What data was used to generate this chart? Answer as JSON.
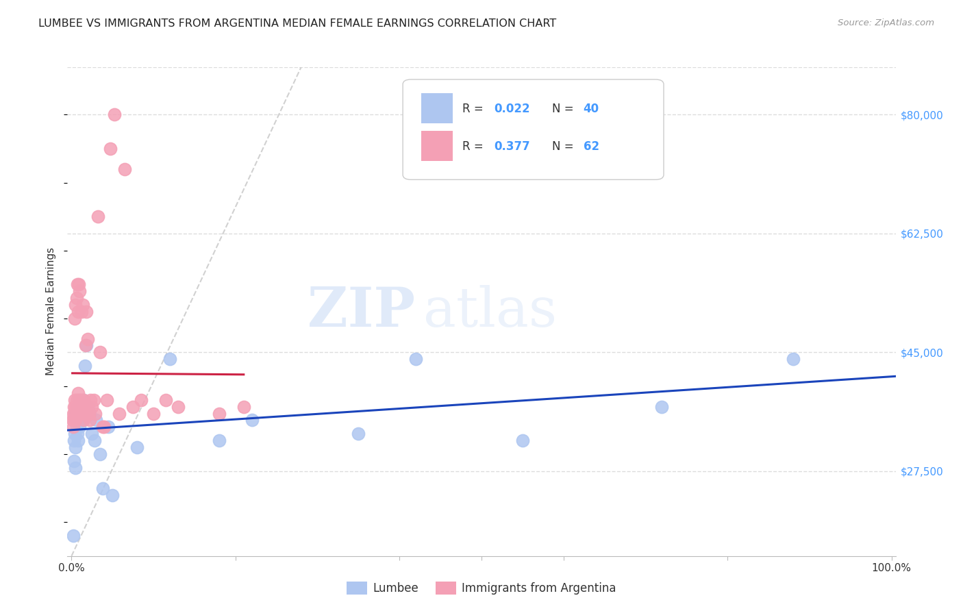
{
  "title": "LUMBEE VS IMMIGRANTS FROM ARGENTINA MEDIAN FEMALE EARNINGS CORRELATION CHART",
  "source": "Source: ZipAtlas.com",
  "ylabel": "Median Female Earnings",
  "yticks": [
    27500,
    45000,
    62500,
    80000
  ],
  "ytick_labels": [
    "$27,500",
    "$45,000",
    "$62,500",
    "$80,000"
  ],
  "ylim": [
    15000,
    87000
  ],
  "xlim": [
    -0.005,
    1.005
  ],
  "watermark_zip": "ZIP",
  "watermark_atlas": "atlas",
  "legend_r1": "0.022",
  "legend_n1": "40",
  "legend_r2": "0.377",
  "legend_n2": "62",
  "lumbee_color": "#aec6f0",
  "argentina_color": "#f4a0b5",
  "lumbee_line_color": "#1a44bb",
  "argentina_line_color": "#cc2244",
  "diagonal_color": "#cccccc",
  "background_color": "#ffffff",
  "lumbee_x": [
    0.002,
    0.003,
    0.003,
    0.004,
    0.005,
    0.005,
    0.005,
    0.006,
    0.006,
    0.007,
    0.007,
    0.008,
    0.008,
    0.009,
    0.009,
    0.01,
    0.011,
    0.012,
    0.013,
    0.015,
    0.016,
    0.018,
    0.02,
    0.022,
    0.025,
    0.028,
    0.03,
    0.035,
    0.038,
    0.045,
    0.05,
    0.08,
    0.12,
    0.18,
    0.22,
    0.35,
    0.42,
    0.55,
    0.72,
    0.88
  ],
  "lumbee_y": [
    18000,
    32000,
    29000,
    33000,
    36000,
    31000,
    28000,
    35000,
    34000,
    37000,
    33000,
    36000,
    32000,
    35000,
    38000,
    34000,
    36000,
    37000,
    35000,
    38000,
    43000,
    46000,
    37000,
    36000,
    33000,
    32000,
    35000,
    30000,
    25000,
    34000,
    24000,
    31000,
    44000,
    32000,
    35000,
    33000,
    44000,
    32000,
    37000,
    44000
  ],
  "argentina_x": [
    0.001,
    0.002,
    0.002,
    0.003,
    0.003,
    0.004,
    0.004,
    0.004,
    0.005,
    0.005,
    0.005,
    0.006,
    0.006,
    0.006,
    0.007,
    0.007,
    0.007,
    0.008,
    0.008,
    0.008,
    0.009,
    0.009,
    0.009,
    0.01,
    0.01,
    0.01,
    0.011,
    0.011,
    0.012,
    0.012,
    0.013,
    0.013,
    0.014,
    0.015,
    0.015,
    0.016,
    0.017,
    0.018,
    0.019,
    0.02,
    0.021,
    0.022,
    0.023,
    0.025,
    0.027,
    0.029,
    0.032,
    0.035,
    0.038,
    0.04,
    0.043,
    0.047,
    0.052,
    0.058,
    0.065,
    0.075,
    0.085,
    0.1,
    0.115,
    0.13,
    0.18,
    0.21
  ],
  "argentina_y": [
    35000,
    36000,
    34000,
    37000,
    35000,
    38000,
    36000,
    50000,
    37000,
    35000,
    52000,
    53000,
    36000,
    38000,
    55000,
    37000,
    36000,
    39000,
    51000,
    37000,
    55000,
    37000,
    36000,
    54000,
    38000,
    36000,
    37000,
    36000,
    51000,
    38000,
    37000,
    36000,
    52000,
    38000,
    35000,
    36000,
    46000,
    51000,
    37000,
    47000,
    36000,
    35000,
    38000,
    37000,
    38000,
    36000,
    65000,
    45000,
    34000,
    34000,
    38000,
    75000,
    80000,
    36000,
    72000,
    37000,
    38000,
    36000,
    38000,
    37000,
    36000,
    37000
  ]
}
